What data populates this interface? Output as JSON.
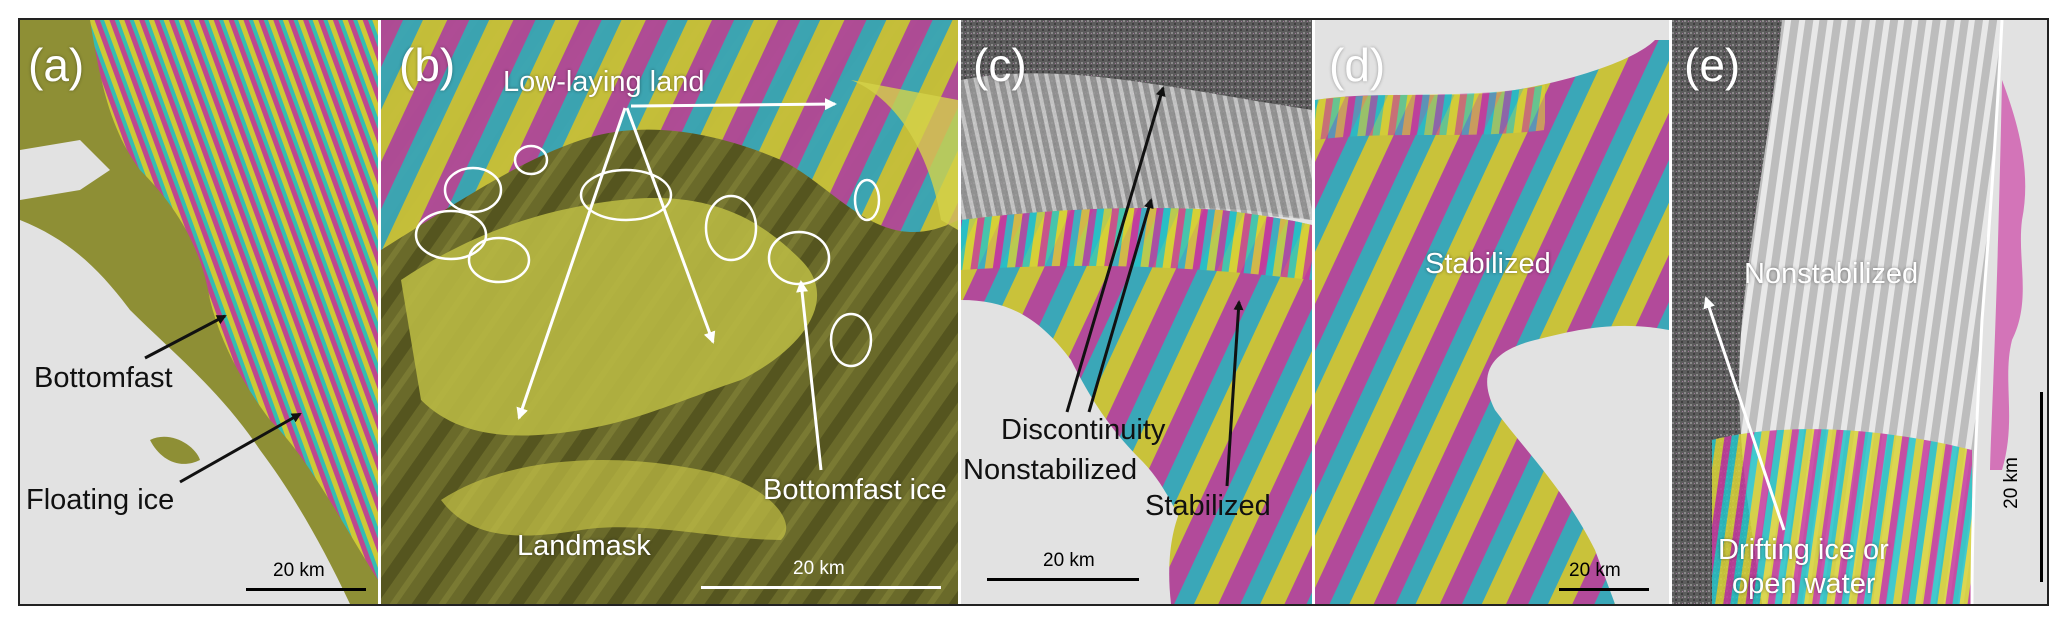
{
  "panels": [
    {
      "id": "a",
      "label": "(a)",
      "annotations": [
        "Bottomfast",
        "Floating ice"
      ],
      "scale": "20 km"
    },
    {
      "id": "b",
      "label": "(b)",
      "annotations": [
        "Low-laying land",
        "Bottomfast ice",
        "Landmask"
      ],
      "scale": "20 km"
    },
    {
      "id": "c",
      "label": "(c)",
      "annotations": [
        "Discontinuity",
        "Nonstabilized",
        "Stabilized"
      ],
      "scale": "20 km"
    },
    {
      "id": "d",
      "label": "(d)",
      "annotations": [
        "Stabilized"
      ],
      "scale": "20 km"
    },
    {
      "id": "e",
      "label": "(e)",
      "annotations": [
        "Nonstabilized",
        "Drifting ice or",
        "open water"
      ],
      "scale": "20 km"
    }
  ],
  "colors": {
    "background": "#e2e2e2",
    "fringe_magenta": "#c53a9e",
    "fringe_cyan": "#25c4c8",
    "fringe_yellow": "#d9d336",
    "olive": "#8f8f33",
    "land_dark": "#4f4f1e",
    "noise_gray": "#5a5a5a"
  }
}
